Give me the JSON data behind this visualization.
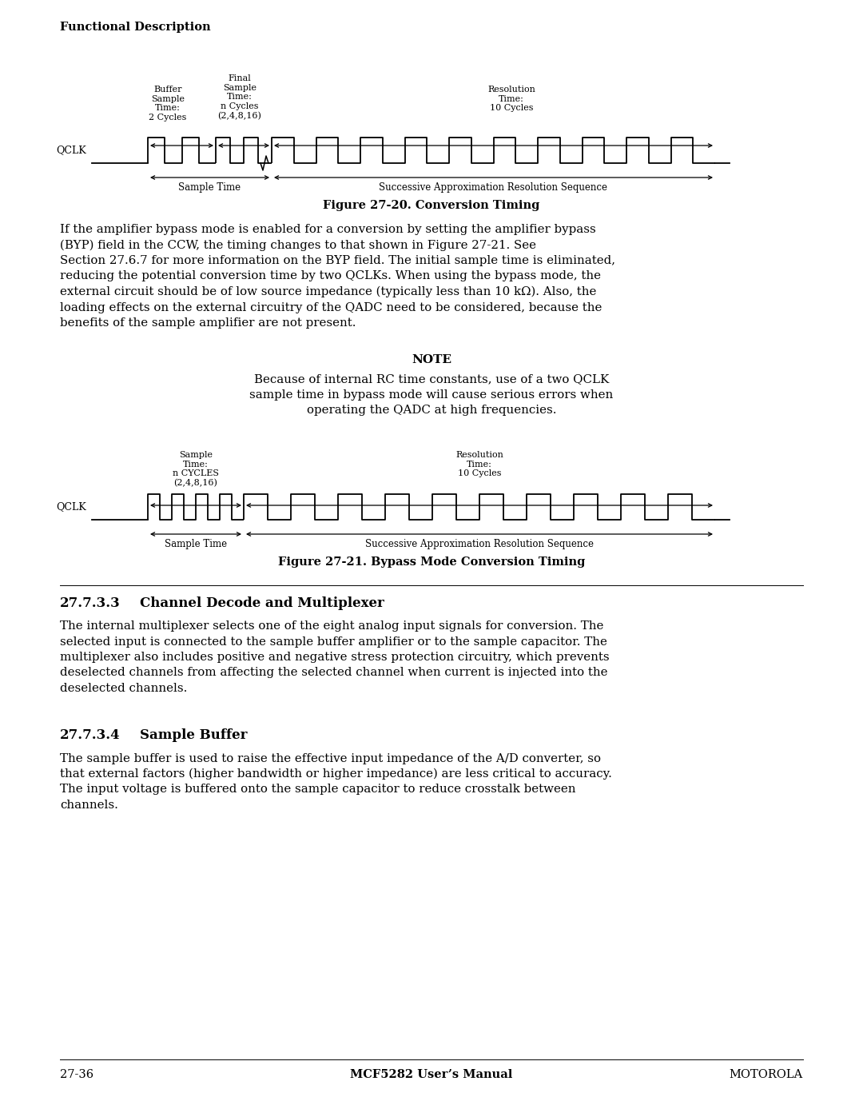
{
  "page_header": "Functional Description",
  "footer_left": "27-36",
  "footer_center": "MCF5282 User’s Manual",
  "footer_right": "MOTOROLA",
  "fig1_caption": "Figure 27-20. Conversion Timing",
  "fig2_caption": "Figure 27-21. Bypass Mode Conversion Timing",
  "section_333_title": "27.7.3.3  Channel Decode and Multiplexer",
  "section_334_title": "27.7.3.4  Sample Buffer",
  "section_333_body": "The internal multiplexer selects one of the eight analog input signals for conversion. The selected input is connected to the sample buffer amplifier or to the sample capacitor. The multiplexer also includes positive and negative stress protection circuitry, which prevents deselected channels from affecting the selected channel when current is injected into the deselected channels.",
  "section_334_body": "The sample buffer is used to raise the effective input impedance of the A/D converter, so that external factors (higher bandwidth or higher impedance) are less critical to accuracy. The input voltage is buffered onto the sample capacitor to reduce crosstalk between channels.",
  "note_title": "NOTE",
  "note_body": "Because of internal RC time constants, use of a two QCLK\nsample time in bypass mode will cause serious errors when\noperating the QADC at high frequencies.",
  "paragraph1_lines": [
    "If the amplifier bypass mode is enabled for a conversion by setting the amplifier bypass",
    "(BYP) field in the CCW, the timing changes to that shown in Figure 27-21. See",
    "Section 27.6.7 for more information on the BYP field. The initial sample time is eliminated,",
    "reducing the potential conversion time by two QCLKs. When using the bypass mode, the",
    "external circuit should be of low source impedance (typically less than 10 kΩ). Also, the",
    "loading effects on the external circuitry of the QADC need to be considered, because the",
    "benefits of the sample amplifier are not present."
  ],
  "bg_color": "#ffffff",
  "text_color": "#000000"
}
